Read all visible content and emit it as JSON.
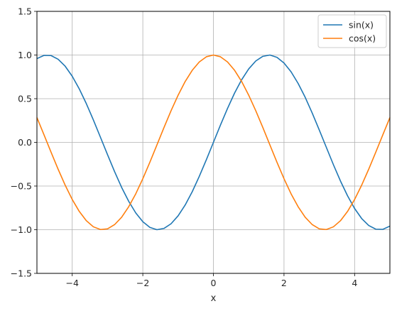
{
  "chart_data": {
    "type": "line",
    "title": "",
    "xlabel": "x",
    "ylabel": "",
    "xlim": [
      -5,
      5
    ],
    "ylim": [
      -1.5,
      1.5
    ],
    "xticks": [
      -4,
      -2,
      0,
      2,
      4
    ],
    "xtick_labels": [
      "−4",
      "−2",
      "0",
      "2",
      "4"
    ],
    "yticks": [
      -1.5,
      -1.0,
      -0.5,
      0.0,
      0.5,
      1.0,
      1.5
    ],
    "ytick_labels": [
      "−1.5",
      "−1.0",
      "−0.5",
      "0.0",
      "0.5",
      "1.0",
      "1.5"
    ],
    "grid": true,
    "legend_position": "top-right",
    "series": [
      {
        "name": "sin(x)",
        "color": "#1f77b4",
        "x": [
          -5.0,
          -4.8,
          -4.6,
          -4.4,
          -4.2,
          -4.0,
          -3.8,
          -3.6,
          -3.4,
          -3.2,
          -3.0,
          -2.8,
          -2.6,
          -2.4,
          -2.2,
          -2.0,
          -1.8,
          -1.6,
          -1.4,
          -1.2,
          -1.0,
          -0.8,
          -0.6,
          -0.4,
          -0.2,
          0.0,
          0.2,
          0.4,
          0.6,
          0.8,
          1.0,
          1.2,
          1.4,
          1.6,
          1.8,
          2.0,
          2.2,
          2.4,
          2.6,
          2.8,
          3.0,
          3.2,
          3.4,
          3.6,
          3.8,
          4.0,
          4.2,
          4.4,
          4.6,
          4.8,
          5.0
        ],
        "y": [
          0.959,
          0.996,
          0.994,
          0.952,
          0.872,
          0.757,
          0.612,
          0.443,
          0.256,
          0.058,
          -0.141,
          -0.335,
          -0.516,
          -0.675,
          -0.808,
          -0.909,
          -0.974,
          -1.0,
          -0.985,
          -0.932,
          -0.841,
          -0.717,
          -0.565,
          -0.389,
          -0.199,
          0.0,
          0.199,
          0.389,
          0.565,
          0.717,
          0.841,
          0.932,
          0.985,
          1.0,
          0.974,
          0.909,
          0.808,
          0.675,
          0.516,
          0.335,
          0.141,
          -0.058,
          -0.256,
          -0.443,
          -0.612,
          -0.757,
          -0.872,
          -0.952,
          -0.994,
          -0.996,
          -0.959
        ]
      },
      {
        "name": "cos(x)",
        "color": "#ff7f0e",
        "x": [
          -5.0,
          -4.8,
          -4.6,
          -4.4,
          -4.2,
          -4.0,
          -3.8,
          -3.6,
          -3.4,
          -3.2,
          -3.0,
          -2.8,
          -2.6,
          -2.4,
          -2.2,
          -2.0,
          -1.8,
          -1.6,
          -1.4,
          -1.2,
          -1.0,
          -0.8,
          -0.6,
          -0.4,
          -0.2,
          0.0,
          0.2,
          0.4,
          0.6,
          0.8,
          1.0,
          1.2,
          1.4,
          1.6,
          1.8,
          2.0,
          2.2,
          2.4,
          2.6,
          2.8,
          3.0,
          3.2,
          3.4,
          3.6,
          3.8,
          4.0,
          4.2,
          4.4,
          4.6,
          4.8,
          5.0
        ],
        "y": [
          0.284,
          0.087,
          -0.112,
          -0.307,
          -0.49,
          -0.654,
          -0.791,
          -0.897,
          -0.967,
          -0.998,
          -0.99,
          -0.942,
          -0.857,
          -0.737,
          -0.589,
          -0.416,
          -0.227,
          -0.029,
          0.17,
          0.362,
          0.54,
          0.697,
          0.825,
          0.921,
          0.98,
          1.0,
          0.98,
          0.921,
          0.825,
          0.697,
          0.54,
          0.362,
          0.17,
          -0.029,
          -0.227,
          -0.416,
          -0.589,
          -0.737,
          -0.857,
          -0.942,
          -0.99,
          -0.998,
          -0.967,
          -0.897,
          -0.791,
          -0.654,
          -0.49,
          -0.307,
          -0.112,
          0.087,
          0.284
        ]
      }
    ]
  }
}
